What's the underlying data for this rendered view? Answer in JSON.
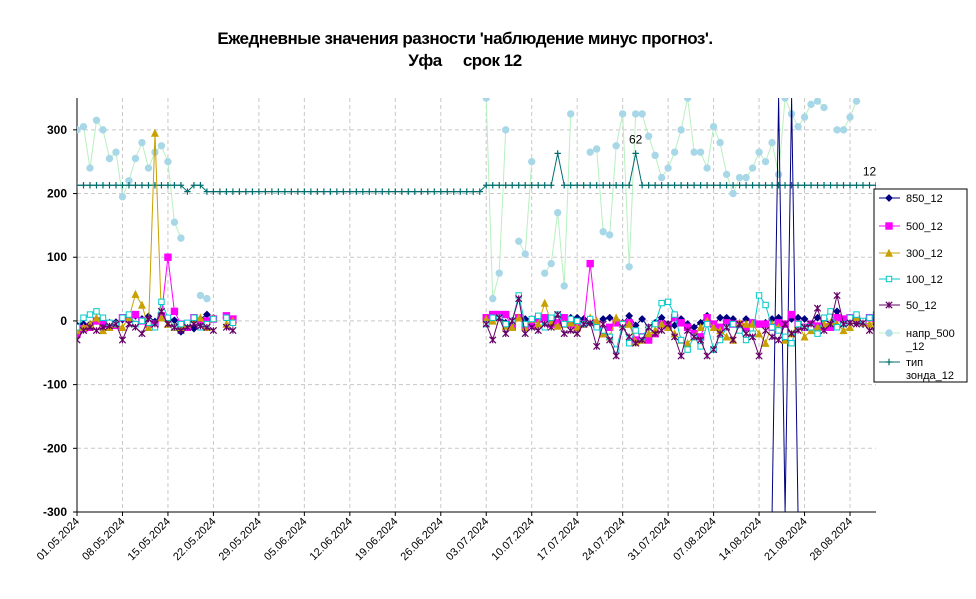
{
  "chart_data": {
    "type": "line",
    "title": "Ежедневные значения разности 'наблюдение минус прогноз'.",
    "subtitle": "Уфа     срок 12",
    "ylim": [
      -300,
      350
    ],
    "yticks": [
      -300,
      -200,
      -100,
      0,
      100,
      200,
      300
    ],
    "x_start": "01.05.2024",
    "x_end": "01.09.2024",
    "xticks": [
      "01.05.2024",
      "08.05.2024",
      "15.05.2024",
      "22.05.2024",
      "29.05.2024",
      "05.06.2024",
      "12.06.2024",
      "19.06.2024",
      "26.06.2024",
      "03.07.2024",
      "10.07.2024",
      "17.07.2024",
      "24.07.2024",
      "31.07.2024",
      "07.08.2024",
      "14.08.2024",
      "21.08.2024",
      "28.08.2024"
    ],
    "grid": true,
    "legend_position": "right",
    "annotations": [
      {
        "text": "62",
        "x": "26.07.2024",
        "y": 263
      },
      {
        "text": "12",
        "x": "31.08.2024",
        "y": 213
      }
    ],
    "series": [
      {
        "name": "850_12",
        "color": "#000080",
        "marker": "diamond",
        "start": "01.05.2024",
        "values": [
          -7,
          -5,
          -5,
          0,
          -8,
          -3,
          -2,
          2,
          5,
          8,
          3,
          7,
          -1,
          8,
          3,
          1,
          -17,
          -10,
          -12,
          3,
          10,
          5,
          null,
          5,
          -3,
          null,
          null,
          null,
          null,
          null,
          null,
          null,
          null,
          null,
          null,
          null,
          null,
          null,
          null,
          null,
          null,
          null,
          null,
          null,
          null,
          null,
          null,
          null,
          null,
          null,
          null,
          null,
          null,
          null,
          null,
          null,
          null,
          null,
          null,
          null,
          null,
          null,
          null,
          2,
          5,
          8,
          -3,
          0,
          5,
          3,
          -5,
          0,
          5,
          3,
          -5,
          3,
          5,
          5,
          3,
          -3,
          -5,
          3,
          5,
          0,
          -3,
          8,
          -7,
          3,
          -10,
          -3,
          5,
          -5,
          -7,
          3,
          -5,
          -10,
          -3,
          8,
          -5,
          5,
          5,
          3,
          -5,
          3,
          -3,
          -5,
          -3,
          3,
          5,
          -5,
          3,
          5,
          3,
          -5,
          5,
          3,
          -5,
          15,
          -3,
          5,
          -3,
          -5,
          5,
          -3,
          3,
          5,
          -3,
          5,
          8,
          5,
          -5
        ]
      },
      {
        "name": "500_12",
        "color": "#FF00FF",
        "marker": "square",
        "start": "01.05.2024",
        "values": [
          -20,
          -12,
          -10,
          0,
          -5,
          -7,
          -7,
          5,
          3,
          10,
          0,
          -5,
          -5,
          8,
          100,
          15,
          -5,
          -10,
          5,
          -7,
          0,
          3,
          null,
          8,
          3,
          null,
          null,
          null,
          null,
          null,
          null,
          null,
          null,
          null,
          null,
          null,
          null,
          null,
          null,
          null,
          null,
          null,
          null,
          null,
          null,
          null,
          null,
          null,
          null,
          null,
          null,
          null,
          null,
          null,
          null,
          null,
          null,
          null,
          null,
          null,
          null,
          null,
          null,
          5,
          10,
          10,
          10,
          -10,
          5,
          -10,
          -5,
          3,
          5,
          -5,
          -3,
          5,
          -5,
          -10,
          -5,
          90,
          -5,
          -20,
          -10,
          -3,
          -5,
          -3,
          -30,
          -25,
          -30,
          -20,
          -5,
          -10,
          5,
          -3,
          -10,
          -20,
          -25,
          5,
          -5,
          -10,
          -3,
          -5,
          -5,
          -10,
          -3,
          -5,
          -5,
          -10,
          -3,
          -5,
          10,
          -5,
          -10,
          -5,
          -8,
          -10,
          -10,
          5,
          3,
          5,
          3,
          -3,
          5,
          3,
          5,
          -3,
          5,
          8,
          -3,
          -5
        ]
      },
      {
        "name": "300_12",
        "color": "#C8A000",
        "marker": "triangle",
        "start": "01.05.2024",
        "values": [
          -15,
          -10,
          -5,
          5,
          -15,
          -10,
          -5,
          -10,
          5,
          42,
          25,
          -10,
          295,
          5,
          -5,
          -10,
          -10,
          -5,
          3,
          5,
          -10,
          5,
          null,
          -5,
          0,
          null,
          null,
          null,
          null,
          null,
          null,
          null,
          null,
          null,
          null,
          null,
          null,
          null,
          null,
          null,
          null,
          null,
          null,
          null,
          null,
          null,
          null,
          null,
          null,
          null,
          null,
          null,
          null,
          null,
          null,
          null,
          null,
          null,
          null,
          null,
          null,
          null,
          null,
          3,
          0,
          5,
          -8,
          -10,
          5,
          -10,
          3,
          -5,
          28,
          -3,
          -8,
          -5,
          -3,
          -10,
          -5,
          5,
          0,
          -20,
          -25,
          5,
          -5,
          -5,
          -33,
          -30,
          -20,
          -15,
          -5,
          -10,
          -20,
          -30,
          -35,
          -25,
          -10,
          0,
          -10,
          -15,
          -25,
          -30,
          -3,
          -5,
          -5,
          -20,
          -35,
          -5,
          -10,
          -30,
          -20,
          -5,
          -25,
          -15,
          -10,
          -5,
          -3,
          -5,
          -15,
          -10,
          5,
          -3,
          -5,
          0,
          5,
          -5,
          3,
          -5,
          -15,
          -5
        ]
      },
      {
        "name": "100_12",
        "color": "#00C8C8",
        "marker": "square-open",
        "start": "01.05.2024",
        "values": [
          -10,
          5,
          10,
          15,
          5,
          -3,
          -5,
          5,
          10,
          -5,
          0,
          -3,
          -10,
          30,
          5,
          -10,
          -5,
          -3,
          5,
          -10,
          -5,
          3,
          null,
          5,
          -3,
          null,
          null,
          null,
          null,
          null,
          null,
          null,
          null,
          null,
          null,
          null,
          null,
          null,
          null,
          null,
          null,
          null,
          null,
          null,
          null,
          null,
          null,
          null,
          null,
          null,
          null,
          null,
          null,
          null,
          null,
          null,
          null,
          null,
          null,
          null,
          null,
          null,
          null,
          -5,
          5,
          5,
          -5,
          0,
          40,
          -5,
          3,
          8,
          -10,
          5,
          10,
          -5,
          3,
          0,
          -5,
          3,
          -10,
          -15,
          -25,
          -45,
          -5,
          -35,
          -15,
          -25,
          -10,
          -5,
          28,
          30,
          10,
          -30,
          -45,
          -25,
          -40,
          -5,
          -45,
          -30,
          -10,
          -5,
          -15,
          -30,
          -20,
          40,
          25,
          -10,
          -15,
          -25,
          -35,
          -5,
          -10,
          -10,
          -20,
          5,
          15,
          -10,
          -5,
          5,
          10,
          0,
          5,
          10,
          -3,
          -5,
          -5
        ]
      },
      {
        "name": "50_12",
        "color": "#660066",
        "marker": "x",
        "start": "01.05.2024",
        "values": [
          -30,
          -15,
          -10,
          -15,
          -10,
          -8,
          -5,
          -30,
          -5,
          -10,
          -20,
          3,
          -5,
          15,
          -5,
          -10,
          -15,
          -10,
          -5,
          -8,
          -10,
          -15,
          null,
          -10,
          -15,
          null,
          null,
          null,
          null,
          null,
          null,
          null,
          null,
          null,
          null,
          null,
          null,
          null,
          null,
          null,
          null,
          null,
          null,
          null,
          null,
          null,
          null,
          null,
          null,
          null,
          null,
          null,
          null,
          null,
          null,
          null,
          null,
          null,
          null,
          null,
          null,
          null,
          null,
          -5,
          -30,
          5,
          -20,
          0,
          35,
          -20,
          -10,
          -15,
          -5,
          -10,
          10,
          -20,
          -15,
          -20,
          -5,
          -3,
          -40,
          -5,
          -30,
          -55,
          -10,
          -25,
          -35,
          -30,
          -10,
          -20,
          -15,
          -5,
          -25,
          -55,
          -15,
          -25,
          -30,
          -55,
          -45,
          -20,
          -10,
          -30,
          -5,
          -20,
          -25,
          -55,
          -15,
          -25,
          -30,
          -5,
          -20,
          -15,
          -10,
          -5,
          20,
          -15,
          -5,
          40,
          -5,
          -3,
          -5,
          -3,
          -15,
          -10,
          -5,
          -3,
          -10,
          -5
        ]
      },
      {
        "name": "напр_500_12",
        "color": "#A8D8E8",
        "marker": "circle",
        "line_color": "#B8F0C0",
        "start": "01.05.2024",
        "values": [
          300,
          305,
          240,
          315,
          300,
          255,
          265,
          195,
          220,
          255,
          280,
          240,
          265,
          275,
          250,
          155,
          130,
          null,
          null,
          40,
          35,
          null,
          null,
          null,
          null,
          null,
          null,
          null,
          null,
          null,
          null,
          null,
          null,
          null,
          null,
          null,
          null,
          null,
          null,
          null,
          null,
          null,
          null,
          null,
          null,
          null,
          null,
          null,
          null,
          null,
          null,
          null,
          null,
          null,
          null,
          null,
          null,
          null,
          null,
          null,
          null,
          null,
          null,
          350,
          35,
          75,
          300,
          null,
          125,
          105,
          250,
          null,
          75,
          90,
          170,
          55,
          325,
          null,
          null,
          265,
          270,
          140,
          135,
          275,
          325,
          85,
          325,
          325,
          290,
          260,
          225,
          240,
          265,
          300,
          350,
          265,
          265,
          240,
          305,
          280,
          230,
          200,
          225,
          225,
          240,
          265,
          250,
          280,
          230,
          350,
          325,
          305,
          320,
          340,
          345,
          335,
          null,
          300,
          300,
          320,
          345
        ]
      },
      {
        "name": "тип зонда_12",
        "color": "#006D6F",
        "marker": "plus",
        "start": "01.05.2024",
        "values": [
          213,
          213,
          213,
          213,
          213,
          213,
          213,
          213,
          213,
          213,
          213,
          213,
          213,
          213,
          213,
          213,
          213,
          203,
          213,
          213,
          203,
          203,
          203,
          203,
          203,
          203,
          203,
          203,
          203,
          203,
          203,
          203,
          203,
          203,
          203,
          203,
          203,
          203,
          203,
          203,
          203,
          203,
          203,
          203,
          203,
          203,
          203,
          203,
          203,
          203,
          203,
          203,
          203,
          203,
          203,
          203,
          203,
          203,
          203,
          203,
          203,
          203,
          203,
          213,
          213,
          213,
          213,
          213,
          213,
          213,
          213,
          213,
          213,
          213,
          263,
          213,
          213,
          213,
          213,
          213,
          213,
          213,
          213,
          213,
          213,
          213,
          263,
          213,
          213,
          213,
          213,
          213,
          213,
          213,
          213,
          213,
          213,
          213,
          213,
          213,
          213,
          213,
          213,
          213,
          213,
          213,
          213,
          213,
          213,
          213,
          213,
          213,
          213,
          213,
          213,
          213,
          213,
          213,
          213,
          213,
          213,
          213,
          213,
          213,
          213,
          213,
          213
        ]
      },
      {
        "name": "",
        "color": "#000080",
        "marker": "none",
        "start": "01.05.2024",
        "values": [
          null,
          null,
          null,
          null,
          null,
          null,
          null,
          null,
          null,
          null,
          null,
          null,
          null,
          null,
          null,
          null,
          null,
          null,
          null,
          null,
          null,
          null,
          null,
          null,
          null,
          null,
          null,
          null,
          null,
          null,
          null,
          null,
          null,
          null,
          null,
          null,
          null,
          null,
          null,
          null,
          null,
          null,
          null,
          null,
          null,
          null,
          null,
          null,
          null,
          null,
          null,
          null,
          null,
          null,
          null,
          null,
          null,
          null,
          null,
          null,
          null,
          null,
          null,
          null,
          null,
          null,
          null,
          null,
          null,
          null,
          null,
          null,
          null,
          null,
          null,
          null,
          null,
          null,
          null,
          null,
          null,
          null,
          null,
          null,
          null,
          null,
          null,
          null,
          null,
          null,
          null,
          null,
          null,
          null,
          null,
          null,
          null,
          null,
          null,
          null,
          null,
          null,
          null,
          null,
          null,
          null,
          null,
          -300,
          350,
          -300,
          350,
          -300,
          null,
          null,
          null,
          null,
          null,
          null,
          null,
          null,
          null,
          null,
          null,
          null,
          null,
          null
        ]
      }
    ]
  },
  "legend": [
    {
      "label": "850_12",
      "color": "#000080",
      "marker": "diamond"
    },
    {
      "label": "500_12",
      "color": "#FF00FF",
      "marker": "square"
    },
    {
      "label": "300_12",
      "color": "#C8A000",
      "marker": "triangle"
    },
    {
      "label": "100_12",
      "color": "#00C8C8",
      "marker": "square-open"
    },
    {
      "label": "50_12",
      "color": "#660066",
      "marker": "x"
    },
    {
      "label": "напр_500",
      "label2": "_12",
      "color": "#A8D8E8",
      "marker": "circle"
    },
    {
      "label": "тип",
      "label2": "зонда_12",
      "color": "#006D6F",
      "marker": "plus"
    }
  ]
}
